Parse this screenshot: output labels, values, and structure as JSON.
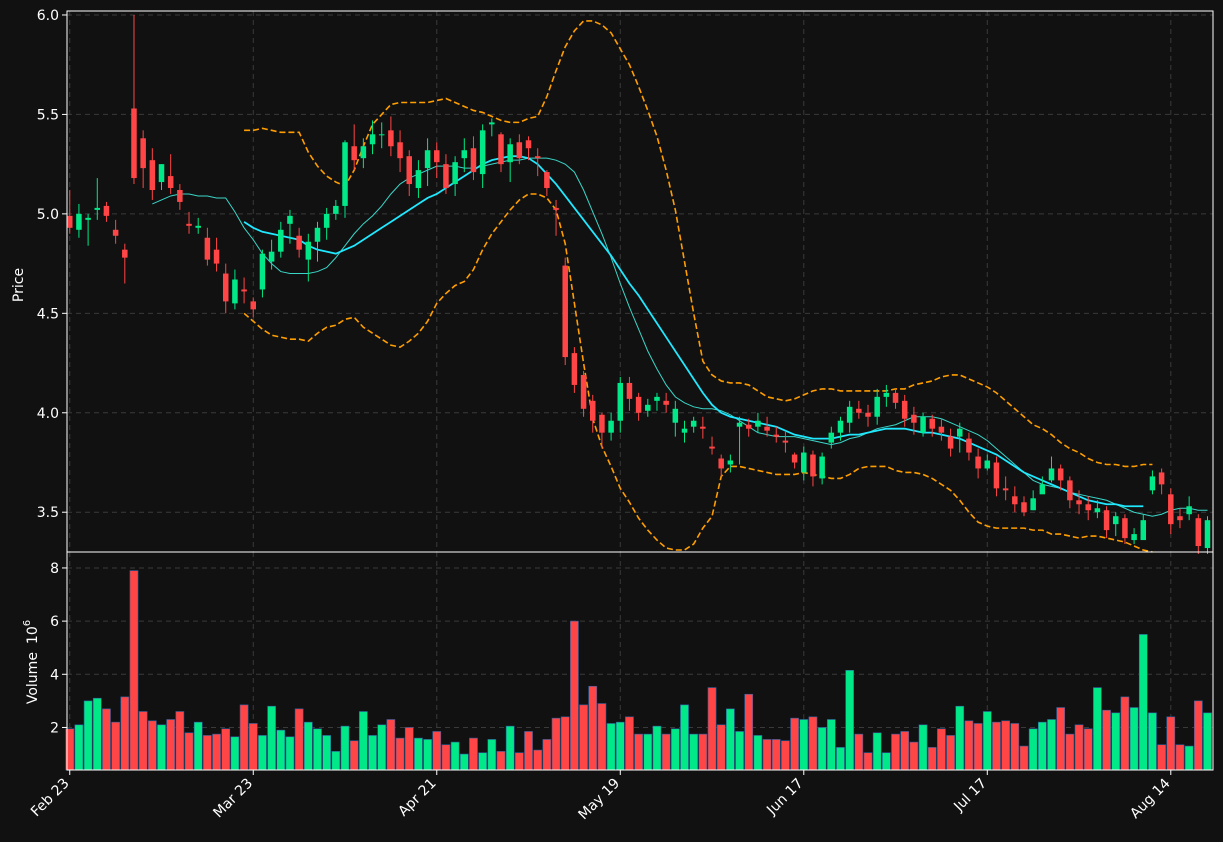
{
  "chart_data": {
    "type": "candlestick",
    "panels": {
      "price": {
        "ylabel": "Price",
        "ylim": [
          3.3,
          6.02
        ],
        "yticks": [
          "3.5",
          "4.0",
          "4.5",
          "5.0",
          "5.5",
          "6.0"
        ]
      },
      "volume": {
        "ylabel": "Volume",
        "ylabel_exp": "6",
        "ylim": [
          0.4,
          8.6
        ],
        "yticks": [
          "2",
          "4",
          "6",
          "8"
        ]
      }
    },
    "xlim": [
      -0.3,
      124.6
    ],
    "xticks": [
      {
        "index": 0,
        "label": "Feb 23"
      },
      {
        "index": 20,
        "label": "Mar 23"
      },
      {
        "index": 40,
        "label": "Apr 21"
      },
      {
        "index": 60,
        "label": "May 19"
      },
      {
        "index": 80,
        "label": "Jun 17"
      },
      {
        "index": 100,
        "label": "Jul 17"
      },
      {
        "index": 120,
        "label": "Aug 14"
      }
    ],
    "grid": true,
    "colors": {
      "background": "#111111",
      "up": "#00e887",
      "down": "#ff4545",
      "ma_slow": "#20e8ff",
      "ma_fast": "#3ad6c8",
      "bollinger": "#ff9e00",
      "grid": "#3a3a3a",
      "axis": "#ffffff"
    },
    "close": [
      4.93,
      5.0,
      4.98,
      5.03,
      4.99,
      4.89,
      4.78,
      5.18,
      5.23,
      5.12,
      5.25,
      5.13,
      5.06,
      4.94,
      4.94,
      4.77,
      4.75,
      4.56,
      4.67,
      4.61,
      4.52,
      4.8,
      4.81,
      4.92,
      4.99,
      4.82,
      4.86,
      4.93,
      5.0,
      5.04,
      5.36,
      5.27,
      5.34,
      5.4,
      5.4,
      5.34,
      5.28,
      5.15,
      5.22,
      5.32,
      5.26,
      5.13,
      5.26,
      5.32,
      5.21,
      5.42,
      5.46,
      5.25,
      5.35,
      5.28,
      5.33,
      5.28,
      5.13,
      5.02,
      4.28,
      4.14,
      4.02,
      3.96,
      3.9,
      3.96,
      4.15,
      4.07,
      4.0,
      4.04,
      4.08,
      4.04,
      4.02,
      3.92,
      3.96,
      3.92,
      3.82,
      3.72,
      3.76,
      3.95,
      3.92,
      3.96,
      3.91,
      3.88,
      3.85,
      3.75,
      3.8,
      3.68,
      3.78,
      3.9,
      3.96,
      4.03,
      4.0,
      3.98,
      4.08,
      4.1,
      4.05,
      3.97,
      3.95,
      3.98,
      3.92,
      3.9,
      3.82,
      3.92,
      3.8,
      3.72,
      3.76,
      3.62,
      3.61,
      3.54,
      3.5,
      3.57,
      3.64,
      3.72,
      3.66,
      3.56,
      3.54,
      3.51,
      3.52,
      3.41,
      3.48,
      3.37,
      3.39,
      3.46,
      3.68,
      3.64,
      3.44,
      3.46,
      3.53,
      3.33,
      3.46
    ],
    "open": [
      4.99,
      4.92,
      4.97,
      5.02,
      5.04,
      4.92,
      4.82,
      5.53,
      5.38,
      5.27,
      5.16,
      5.19,
      5.12,
      4.95,
      4.93,
      4.88,
      4.82,
      4.7,
      4.55,
      4.62,
      4.56,
      4.62,
      4.76,
      4.81,
      4.95,
      4.89,
      4.77,
      4.86,
      4.93,
      5.0,
      5.04,
      5.34,
      5.28,
      5.35,
      5.4,
      5.42,
      5.36,
      5.29,
      5.13,
      5.23,
      5.32,
      5.25,
      5.15,
      5.28,
      5.33,
      5.2,
      5.45,
      5.4,
      5.26,
      5.36,
      5.37,
      5.29,
      5.21,
      5.03,
      4.74,
      4.3,
      4.19,
      4.06,
      3.99,
      3.9,
      3.96,
      4.15,
      4.08,
      4.01,
      4.06,
      4.06,
      3.95,
      3.9,
      3.93,
      3.93,
      3.83,
      3.77,
      3.74,
      3.93,
      3.94,
      3.93,
      3.93,
      3.89,
      3.86,
      3.79,
      3.7,
      3.79,
      3.67,
      3.85,
      3.9,
      3.95,
      4.02,
      4.0,
      3.98,
      4.08,
      4.1,
      4.06,
      3.99,
      3.9,
      3.97,
      3.93,
      3.88,
      3.88,
      3.87,
      3.78,
      3.72,
      3.75,
      3.62,
      3.58,
      3.55,
      3.51,
      3.59,
      3.66,
      3.72,
      3.66,
      3.56,
      3.54,
      3.5,
      3.51,
      3.44,
      3.47,
      3.36,
      3.36,
      3.61,
      3.7,
      3.59,
      3.48,
      3.49,
      3.47,
      3.32
    ],
    "high": [
      5.12,
      5.05,
      5.0,
      5.18,
      5.06,
      4.97,
      4.85,
      6.0,
      5.42,
      5.33,
      5.25,
      5.3,
      5.15,
      5.01,
      4.98,
      4.93,
      4.88,
      4.75,
      4.72,
      4.68,
      4.58,
      4.82,
      4.87,
      4.96,
      5.02,
      4.93,
      4.9,
      4.96,
      5.03,
      5.07,
      5.37,
      5.45,
      5.38,
      5.47,
      5.46,
      5.49,
      5.42,
      5.32,
      5.27,
      5.38,
      5.36,
      5.3,
      5.29,
      5.38,
      5.39,
      5.45,
      5.48,
      5.41,
      5.38,
      5.4,
      5.39,
      5.33,
      5.22,
      5.07,
      4.78,
      4.33,
      4.21,
      4.09,
      4.0,
      4.0,
      4.18,
      4.18,
      4.1,
      4.07,
      4.1,
      4.1,
      4.06,
      3.96,
      3.98,
      3.98,
      3.88,
      3.79,
      3.79,
      3.98,
      3.97,
      4.0,
      3.98,
      3.93,
      3.91,
      3.8,
      3.83,
      3.81,
      3.8,
      3.93,
      3.98,
      4.06,
      4.06,
      4.04,
      4.12,
      4.14,
      4.12,
      4.09,
      4.03,
      4.0,
      3.99,
      3.97,
      3.92,
      3.95,
      3.9,
      3.82,
      3.79,
      3.78,
      3.68,
      3.63,
      3.58,
      3.61,
      3.68,
      3.78,
      3.74,
      3.68,
      3.61,
      3.58,
      3.56,
      3.53,
      3.5,
      3.49,
      3.42,
      3.49,
      3.71,
      3.72,
      3.62,
      3.52,
      3.58,
      3.49,
      3.48
    ],
    "low": [
      4.9,
      4.88,
      4.84,
      4.97,
      4.96,
      4.85,
      4.65,
      5.15,
      5.13,
      5.07,
      5.12,
      5.1,
      5.02,
      4.9,
      4.9,
      4.74,
      4.71,
      4.5,
      4.52,
      4.55,
      4.48,
      4.58,
      4.72,
      4.78,
      4.85,
      4.78,
      4.66,
      4.76,
      4.87,
      4.97,
      4.98,
      5.22,
      5.23,
      5.3,
      5.33,
      5.29,
      5.21,
      5.09,
      5.08,
      5.14,
      5.18,
      5.1,
      5.09,
      5.21,
      5.17,
      5.13,
      5.39,
      5.21,
      5.16,
      5.25,
      5.27,
      5.19,
      5.09,
      4.89,
      4.24,
      4.1,
      3.98,
      3.9,
      3.82,
      3.86,
      3.9,
      4.01,
      3.96,
      3.98,
      4.01,
      4.0,
      3.88,
      3.85,
      3.9,
      3.87,
      3.79,
      3.68,
      3.7,
      3.74,
      3.88,
      3.9,
      3.88,
      3.85,
      3.8,
      3.72,
      3.66,
      3.63,
      3.64,
      3.82,
      3.86,
      3.9,
      3.97,
      3.93,
      3.94,
      4.03,
      4.02,
      3.93,
      3.89,
      3.88,
      3.88,
      3.86,
      3.78,
      3.8,
      3.76,
      3.67,
      3.71,
      3.58,
      3.56,
      3.5,
      3.48,
      3.51,
      3.6,
      3.65,
      3.61,
      3.52,
      3.49,
      3.46,
      3.47,
      3.37,
      3.38,
      3.34,
      3.34,
      3.38,
      3.59,
      3.59,
      3.39,
      3.42,
      3.46,
      3.29,
      3.29
    ],
    "volume": [
      1.95,
      2.1,
      3.0,
      3.1,
      2.7,
      2.2,
      3.15,
      7.9,
      2.6,
      2.25,
      2.1,
      2.3,
      2.6,
      1.8,
      2.2,
      1.7,
      1.75,
      1.95,
      1.65,
      2.85,
      2.15,
      1.7,
      2.8,
      1.9,
      1.65,
      2.7,
      2.2,
      1.95,
      1.7,
      1.1,
      2.05,
      1.5,
      2.6,
      1.7,
      2.1,
      2.3,
      1.6,
      2.0,
      1.6,
      1.55,
      1.85,
      1.35,
      1.45,
      1.0,
      1.6,
      1.05,
      1.55,
      1.1,
      2.05,
      1.05,
      1.85,
      1.15,
      1.55,
      2.35,
      2.4,
      6.0,
      2.85,
      3.55,
      2.9,
      2.15,
      2.2,
      2.4,
      1.75,
      1.75,
      2.05,
      1.75,
      1.95,
      2.85,
      1.75,
      1.75,
      3.5,
      2.1,
      2.7,
      1.85,
      3.25,
      1.7,
      1.55,
      1.55,
      1.5,
      2.35,
      2.3,
      2.4,
      2.0,
      2.3,
      1.25,
      4.15,
      1.75,
      1.05,
      1.8,
      1.05,
      1.75,
      1.85,
      1.45,
      2.1,
      1.25,
      1.95,
      1.7,
      2.8,
      2.25,
      2.15,
      2.6,
      2.2,
      2.25,
      2.15,
      1.3,
      1.95,
      2.2,
      2.3,
      2.75,
      1.75,
      2.1,
      1.95,
      3.5,
      2.65,
      2.55,
      3.15,
      2.75,
      5.5,
      2.55,
      1.35,
      2.4,
      1.35,
      1.3,
      3.0,
      2.55
    ],
    "ma_slow": {
      "start": 19,
      "values": [
        4.96,
        4.93,
        4.91,
        4.9,
        4.89,
        4.88,
        4.87,
        4.84,
        4.82,
        4.81,
        4.8,
        4.82,
        4.84,
        4.87,
        4.9,
        4.93,
        4.96,
        4.99,
        5.02,
        5.05,
        5.08,
        5.1,
        5.13,
        5.16,
        5.19,
        5.22,
        5.25,
        5.27,
        5.28,
        5.29,
        5.29,
        5.28,
        5.25,
        5.2,
        5.15,
        5.09,
        5.03,
        4.97,
        4.91,
        4.85,
        4.79,
        4.72,
        4.65,
        4.59,
        4.52,
        4.45,
        4.38,
        4.31,
        4.24,
        4.17,
        4.1,
        4.04,
        4.0,
        3.98,
        3.97,
        3.96,
        3.95,
        3.94,
        3.93,
        3.91,
        3.89,
        3.88,
        3.87,
        3.87,
        3.87,
        3.88,
        3.89,
        3.89,
        3.9,
        3.91,
        3.92,
        3.92,
        3.92,
        3.91,
        3.9,
        3.9,
        3.89,
        3.88,
        3.87,
        3.85,
        3.83,
        3.81,
        3.79,
        3.76,
        3.73,
        3.7,
        3.68,
        3.66,
        3.64,
        3.62,
        3.6,
        3.58,
        3.56,
        3.55,
        3.54,
        3.54,
        3.53,
        3.53,
        3.53
      ]
    },
    "ma_fast": {
      "start": 9,
      "values": [
        5.05,
        5.07,
        5.09,
        5.1,
        5.1,
        5.09,
        5.09,
        5.08,
        5.08,
        5.01,
        4.93,
        4.87,
        4.8,
        4.75,
        4.71,
        4.7,
        4.7,
        4.7,
        4.71,
        4.73,
        4.78,
        4.84,
        4.9,
        4.95,
        4.99,
        5.04,
        5.1,
        5.15,
        5.18,
        5.2,
        5.22,
        5.24,
        5.24,
        5.24,
        5.23,
        5.23,
        5.24,
        5.25,
        5.26,
        5.27,
        5.27,
        5.28,
        5.28,
        5.28,
        5.27,
        5.25,
        5.21,
        5.12,
        5.01,
        4.9,
        4.78,
        4.65,
        4.53,
        4.42,
        4.31,
        4.22,
        4.14,
        4.08,
        4.05,
        4.03,
        4.02,
        4.02,
        4.01,
        3.99,
        3.96,
        3.93,
        3.9,
        3.89,
        3.88,
        3.88,
        3.88,
        3.87,
        3.86,
        3.85,
        3.84,
        3.85,
        3.87,
        3.88,
        3.9,
        3.92,
        3.93,
        3.94,
        3.96,
        3.98,
        3.98,
        3.98,
        3.97,
        3.95,
        3.93,
        3.91,
        3.89,
        3.86,
        3.82,
        3.78,
        3.74,
        3.7,
        3.66,
        3.64,
        3.63,
        3.62,
        3.6,
        3.59,
        3.58,
        3.57,
        3.56,
        3.54,
        3.52,
        3.5,
        3.49,
        3.48,
        3.49,
        3.51,
        3.52,
        3.52,
        3.51,
        3.51
      ]
    },
    "bollinger": {
      "start": 19,
      "upper": [
        5.42,
        5.42,
        5.43,
        5.42,
        5.41,
        5.41,
        5.41,
        5.31,
        5.24,
        5.19,
        5.16,
        5.14,
        5.22,
        5.34,
        5.45,
        5.5,
        5.55,
        5.56,
        5.56,
        5.56,
        5.56,
        5.57,
        5.58,
        5.56,
        5.54,
        5.52,
        5.51,
        5.49,
        5.47,
        5.46,
        5.46,
        5.48,
        5.49,
        5.59,
        5.72,
        5.84,
        5.92,
        5.97,
        5.97,
        5.95,
        5.91,
        5.83,
        5.75,
        5.64,
        5.52,
        5.39,
        5.22,
        5.02,
        4.76,
        4.5,
        4.26,
        4.19,
        4.16,
        4.15,
        4.15,
        4.14,
        4.11,
        4.08,
        4.07,
        4.06,
        4.07,
        4.09,
        4.11,
        4.12,
        4.12,
        4.11,
        4.11,
        4.11,
        4.11,
        4.11,
        4.11,
        4.12,
        4.12,
        4.14,
        4.15,
        4.16,
        4.18,
        4.19,
        4.19,
        4.17,
        4.15,
        4.13,
        4.1,
        4.06,
        4.02,
        3.98,
        3.94,
        3.92,
        3.89,
        3.85,
        3.82,
        3.8,
        3.77,
        3.75,
        3.74,
        3.74,
        3.73,
        3.73,
        3.74,
        3.74
      ],
      "lower": [
        4.5,
        4.46,
        4.42,
        4.39,
        4.38,
        4.37,
        4.37,
        4.36,
        4.4,
        4.43,
        4.44,
        4.47,
        4.48,
        4.43,
        4.4,
        4.37,
        4.34,
        4.33,
        4.36,
        4.4,
        4.46,
        4.55,
        4.6,
        4.64,
        4.66,
        4.72,
        4.82,
        4.9,
        4.96,
        5.02,
        5.07,
        5.1,
        5.1,
        5.08,
        5.02,
        4.85,
        4.55,
        4.25,
        3.97,
        3.83,
        3.73,
        3.62,
        3.55,
        3.47,
        3.41,
        3.36,
        3.32,
        3.31,
        3.31,
        3.34,
        3.42,
        3.48,
        3.68,
        3.73,
        3.73,
        3.72,
        3.71,
        3.7,
        3.69,
        3.69,
        3.69,
        3.7,
        3.69,
        3.68,
        3.67,
        3.67,
        3.69,
        3.72,
        3.73,
        3.73,
        3.73,
        3.71,
        3.7,
        3.7,
        3.69,
        3.67,
        3.64,
        3.61,
        3.56,
        3.5,
        3.45,
        3.43,
        3.42,
        3.42,
        3.42,
        3.42,
        3.41,
        3.41,
        3.39,
        3.39,
        3.38,
        3.37,
        3.38,
        3.38,
        3.37,
        3.36,
        3.35,
        3.33,
        3.31,
        3.3
      ]
    }
  }
}
